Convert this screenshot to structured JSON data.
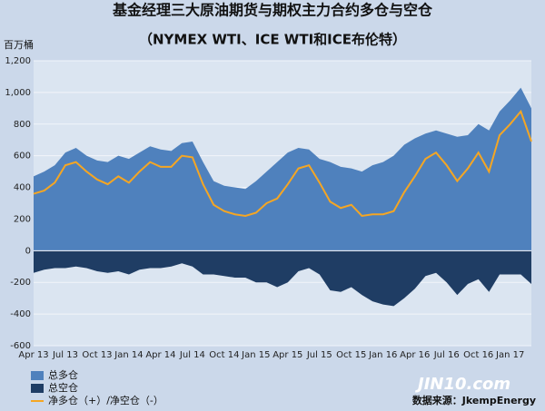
{
  "chart_data": {
    "type": "area",
    "title": "基金经理三大原油期货与期权主力合约多仓与空仓",
    "subtitle": "（NYMEX WTI、ICE WTI和ICE布伦特）",
    "y_label": "百万桶",
    "source": "数据来源：JkempEnergy",
    "watermark": "JIN10.com",
    "grid": true,
    "categories": [
      "Apr 13",
      null,
      null,
      "Jul 13",
      null,
      null,
      "Oct 13",
      null,
      null,
      "Jan 14",
      null,
      null,
      "Apr 14",
      null,
      null,
      "Jul 14",
      null,
      null,
      "Oct 14",
      null,
      null,
      "Jan 15",
      null,
      null,
      "Apr 15",
      null,
      null,
      "Jul 15",
      null,
      null,
      "Oct 15",
      null,
      null,
      "Jan 16",
      null,
      null,
      "Apr 16",
      null,
      null,
      "Jul 16",
      null,
      null,
      "Oct 16",
      null,
      null,
      "Jan 17",
      null,
      null
    ],
    "ylim": [
      -600,
      1200
    ],
    "yticks": [
      -600,
      -400,
      -200,
      0,
      200,
      400,
      600,
      800,
      {
        "value": 1000,
        "label": "1,000"
      },
      {
        "value": 1200,
        "label": "1,200"
      }
    ],
    "series": [
      {
        "name": "总多仓",
        "color": "#4f81bd",
        "values": [
          470,
          500,
          540,
          620,
          650,
          600,
          570,
          560,
          600,
          580,
          620,
          660,
          640,
          630,
          680,
          690,
          560,
          440,
          410,
          400,
          390,
          440,
          500,
          560,
          620,
          650,
          640,
          580,
          560,
          530,
          520,
          500,
          540,
          560,
          600,
          670,
          710,
          740,
          760,
          740,
          720,
          730,
          800,
          760,
          880,
          950,
          1030,
          900
        ]
      },
      {
        "name": "总空仓",
        "color": "#1f3d64",
        "values": [
          -140,
          -120,
          -110,
          -110,
          -100,
          -110,
          -130,
          -140,
          -130,
          -150,
          -120,
          -110,
          -110,
          -100,
          -80,
          -100,
          -150,
          -150,
          -160,
          -170,
          -170,
          -200,
          -200,
          -230,
          -200,
          -130,
          -110,
          -150,
          -250,
          -260,
          -230,
          -280,
          -320,
          -340,
          -350,
          -300,
          -240,
          -160,
          -140,
          -200,
          -280,
          -210,
          -180,
          -260,
          -150,
          -150,
          -150,
          -210
        ]
      },
      {
        "name": "净多仓（+）/净空仓（-）",
        "color": "#f5a623",
        "values": [
          360,
          380,
          430,
          540,
          560,
          500,
          450,
          420,
          470,
          430,
          500,
          560,
          530,
          530,
          600,
          590,
          420,
          290,
          250,
          230,
          220,
          240,
          300,
          330,
          420,
          520,
          540,
          430,
          310,
          270,
          290,
          220,
          230,
          230,
          250,
          370,
          470,
          580,
          620,
          540,
          440,
          520,
          620,
          500,
          730,
          800,
          880,
          690
        ]
      }
    ]
  }
}
